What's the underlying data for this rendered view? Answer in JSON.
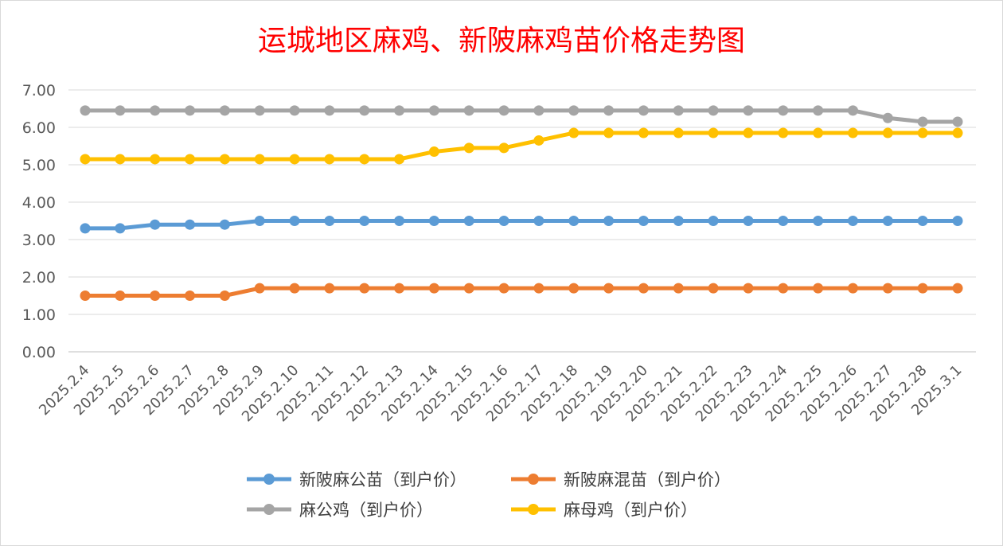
{
  "chart_data": {
    "type": "line",
    "title": "运城地区麻鸡、新陂麻鸡苗价格走势图",
    "xlabel": "",
    "ylabel": "",
    "ylim": [
      0,
      7
    ],
    "yticks": [
      "0.00",
      "1.00",
      "2.00",
      "3.00",
      "4.00",
      "5.00",
      "6.00",
      "7.00"
    ],
    "grid": true,
    "legend_position": "bottom",
    "categories": [
      "2025.2.4",
      "2025.2.5",
      "2025.2.6",
      "2025.2.7",
      "2025.2.8",
      "2025.2.9",
      "2025.2.10",
      "2025.2.11",
      "2025.2.12",
      "2025.2.13",
      "2025.2.14",
      "2025.2.15",
      "2025.2.16",
      "2025.2.17",
      "2025.2.18",
      "2025.2.19",
      "2025.2.20",
      "2025.2.21",
      "2025.2.22",
      "2025.2.23",
      "2025.2.24",
      "2025.2.25",
      "2025.2.26",
      "2025.2.27",
      "2025.2.28",
      "2025.3.1"
    ],
    "series": [
      {
        "name": "新陂麻公苗（到户价）",
        "color": "#5b9bd5",
        "values": [
          3.3,
          3.3,
          3.4,
          3.4,
          3.4,
          3.5,
          3.5,
          3.5,
          3.5,
          3.5,
          3.5,
          3.5,
          3.5,
          3.5,
          3.5,
          3.5,
          3.5,
          3.5,
          3.5,
          3.5,
          3.5,
          3.5,
          3.5,
          3.5,
          3.5,
          3.5
        ]
      },
      {
        "name": "新陂麻混苗（到户价）",
        "color": "#ed7d31",
        "values": [
          1.5,
          1.5,
          1.5,
          1.5,
          1.5,
          1.7,
          1.7,
          1.7,
          1.7,
          1.7,
          1.7,
          1.7,
          1.7,
          1.7,
          1.7,
          1.7,
          1.7,
          1.7,
          1.7,
          1.7,
          1.7,
          1.7,
          1.7,
          1.7,
          1.7,
          1.7
        ]
      },
      {
        "name": "麻公鸡（到户价）",
        "color": "#a5a5a5",
        "values": [
          6.45,
          6.45,
          6.45,
          6.45,
          6.45,
          6.45,
          6.45,
          6.45,
          6.45,
          6.45,
          6.45,
          6.45,
          6.45,
          6.45,
          6.45,
          6.45,
          6.45,
          6.45,
          6.45,
          6.45,
          6.45,
          6.45,
          6.45,
          6.25,
          6.15,
          6.15
        ]
      },
      {
        "name": "麻母鸡（到户价）",
        "color": "#ffc000",
        "values": [
          5.15,
          5.15,
          5.15,
          5.15,
          5.15,
          5.15,
          5.15,
          5.15,
          5.15,
          5.15,
          5.35,
          5.45,
          5.45,
          5.65,
          5.85,
          5.85,
          5.85,
          5.85,
          5.85,
          5.85,
          5.85,
          5.85,
          5.85,
          5.85,
          5.85,
          5.85
        ]
      }
    ]
  }
}
